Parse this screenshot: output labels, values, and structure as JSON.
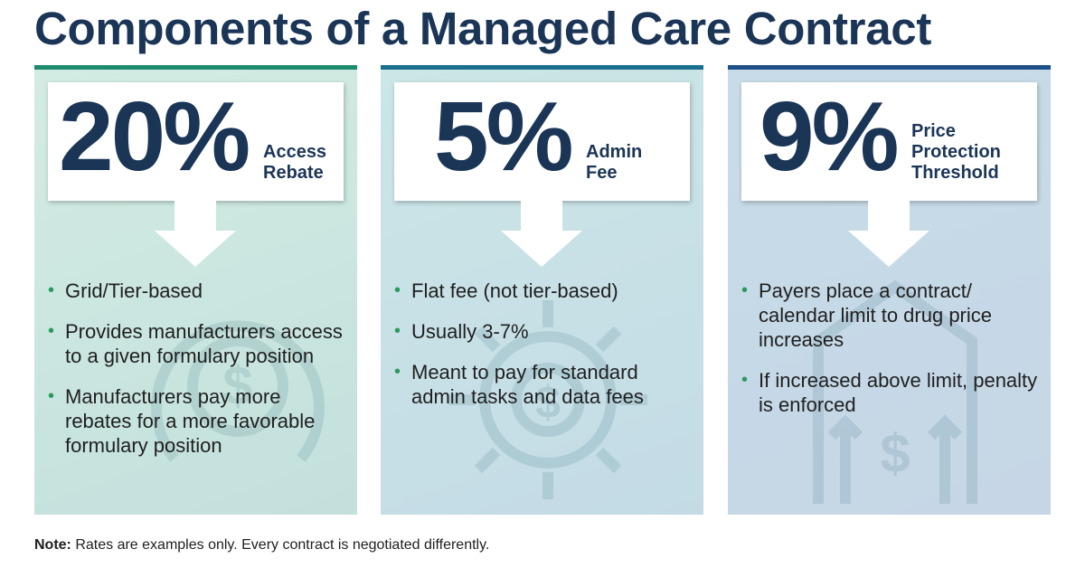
{
  "title": "Components of a Managed Care Contract",
  "colors": {
    "navy": "#1b3557",
    "bullet_green": "#2a9a5c",
    "panel1_top_bar": "#1e8a6e",
    "panel2_top_bar": "#1b6f8e",
    "panel3_top_bar": "#1f4f8a"
  },
  "panels": [
    {
      "percent": "20%",
      "label_lines": [
        "Access",
        "Rebate"
      ],
      "background_icon": "dollar-coin-cycle-icon",
      "bullets": [
        "Grid/Tier-based",
        "Provides manufacturers access to a given formulary position",
        "Manufacturers pay more rebates for a more favorable formulary position"
      ]
    },
    {
      "percent": "5%",
      "label_lines": [
        "Admin",
        "Fee"
      ],
      "background_icon": "dollar-gear-icon",
      "bullets": [
        "Flat fee (not tier-based)",
        "Usually 3-7%",
        "Meant to pay for standard admin tasks and data fees"
      ]
    },
    {
      "percent": "9%",
      "label_lines": [
        "Price",
        "Protection",
        "Threshold"
      ],
      "background_icon": "dollar-up-arrows-icon",
      "bullets": [
        "Payers place a contract/ calendar limit to drug price increases",
        "If increased above limit, penalty is enforced"
      ]
    }
  ],
  "note": {
    "label": "Note:",
    "text": " Rates are examples only. Every contract is negotiated differently."
  }
}
